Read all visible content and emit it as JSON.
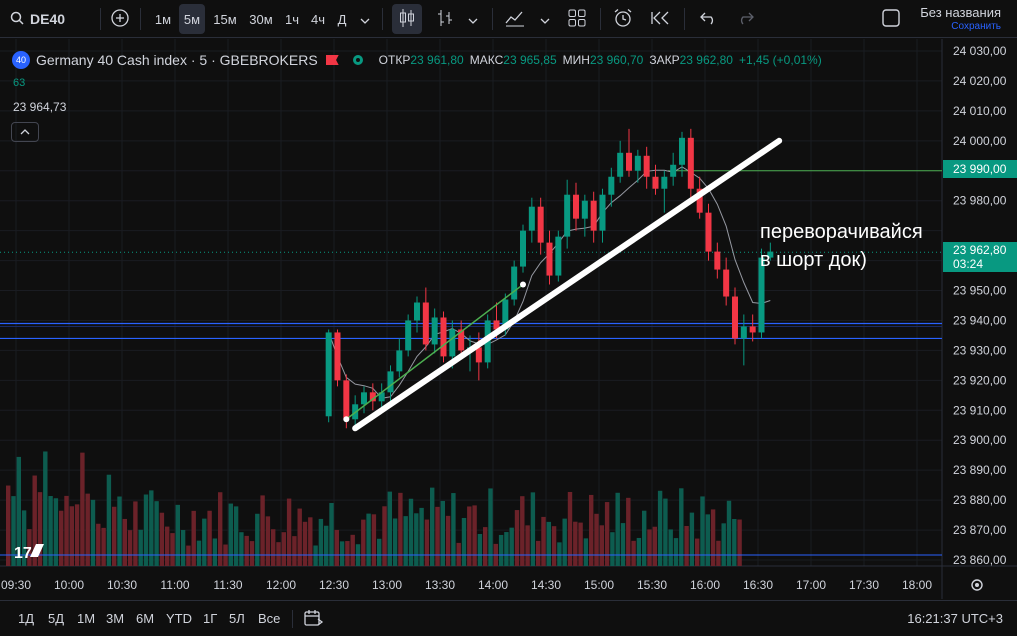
{
  "toolbar": {
    "symbol": "DE40",
    "intervals": [
      "1м",
      "5м",
      "15м",
      "30м",
      "1ч",
      "4ч",
      "Д"
    ],
    "active_interval": "5м",
    "layout_title": "Без названия",
    "layout_status": "Сохранить"
  },
  "legend": {
    "badge": "40",
    "title": "Germany 40 Cash index · 5 · GBEBROKERS",
    "open_label": "ОТКР",
    "open": "23 961,80",
    "high_label": "МАКС",
    "high": "23 965,85",
    "low_label": "МИН",
    "low": "23 960,70",
    "close_label": "ЗАКР",
    "close": "23 962,80",
    "change": "+1,45 (+0,01%)",
    "indicator_value": "63",
    "ma_value": "23 964,73"
  },
  "annotation": {
    "line1": "переворачивайся",
    "line2": "в шорт док)"
  },
  "price_axis": {
    "ticks": [
      "24 030,00",
      "24 020,00",
      "24 010,00",
      "24 000,00",
      "23 980,00",
      "23 950,00",
      "23 940,00",
      "23 930,00",
      "23 920,00",
      "23 910,00",
      "23 900,00",
      "23 890,00",
      "23 880,00",
      "23 870,00",
      "23 860,00"
    ],
    "level_label": "23 990,00",
    "current_price": "23 962,80",
    "countdown": "03:24"
  },
  "time_axis": {
    "ticks": [
      "09:30",
      "10:00",
      "10:30",
      "11:00",
      "11:30",
      "12:00",
      "12:30",
      "13:00",
      "13:30",
      "14:00",
      "14:30",
      "15:00",
      "15:30",
      "16:00",
      "16:30",
      "17:00",
      "17:30",
      "18:00"
    ]
  },
  "bottom": {
    "ranges": [
      "1Д",
      "5Д",
      "1М",
      "3М",
      "6М",
      "YTD",
      "1Г",
      "5Л",
      "Все"
    ],
    "clock": "16:21:37 UTC+3"
  },
  "colors": {
    "up": "#089981",
    "down": "#f23645",
    "level": "#4caf50",
    "zone": "#2962ff"
  },
  "chart_data": {
    "type": "candlestick",
    "x_axis": "time",
    "y_axis_range": [
      23858,
      24032
    ],
    "candles": [
      {
        "t": "12:10",
        "o": 23908,
        "h": 23937,
        "l": 23906,
        "c": 23936
      },
      {
        "t": "12:15",
        "o": 23936,
        "h": 23937,
        "l": 23918,
        "c": 23920
      },
      {
        "t": "12:20",
        "o": 23920,
        "h": 23922,
        "l": 23904,
        "c": 23907
      },
      {
        "t": "12:25",
        "o": 23907,
        "h": 23915,
        "l": 23905,
        "c": 23912
      },
      {
        "t": "12:30",
        "o": 23912,
        "h": 23918,
        "l": 23909,
        "c": 23916
      },
      {
        "t": "12:35",
        "o": 23916,
        "h": 23919,
        "l": 23910,
        "c": 23913
      },
      {
        "t": "12:40",
        "o": 23913,
        "h": 23919,
        "l": 23910,
        "c": 23916
      },
      {
        "t": "12:45",
        "o": 23916,
        "h": 23925,
        "l": 23913,
        "c": 23923
      },
      {
        "t": "12:50",
        "o": 23923,
        "h": 23934,
        "l": 23921,
        "c": 23930
      },
      {
        "t": "12:55",
        "o": 23930,
        "h": 23942,
        "l": 23928,
        "c": 23940
      },
      {
        "t": "13:00",
        "o": 23940,
        "h": 23948,
        "l": 23936,
        "c": 23946
      },
      {
        "t": "13:05",
        "o": 23946,
        "h": 23951,
        "l": 23930,
        "c": 23932
      },
      {
        "t": "13:10",
        "o": 23932,
        "h": 23944,
        "l": 23929,
        "c": 23941
      },
      {
        "t": "13:15",
        "o": 23941,
        "h": 23943,
        "l": 23926,
        "c": 23928
      },
      {
        "t": "13:20",
        "o": 23928,
        "h": 23940,
        "l": 23924,
        "c": 23937
      },
      {
        "t": "13:25",
        "o": 23937,
        "h": 23940,
        "l": 23927,
        "c": 23930
      },
      {
        "t": "13:30",
        "o": 23930,
        "h": 23935,
        "l": 23923,
        "c": 23931
      },
      {
        "t": "13:35",
        "o": 23931,
        "h": 23936,
        "l": 23920,
        "c": 23926
      },
      {
        "t": "13:40",
        "o": 23926,
        "h": 23942,
        "l": 23924,
        "c": 23940
      },
      {
        "t": "13:45",
        "o": 23940,
        "h": 23946,
        "l": 23934,
        "c": 23937
      },
      {
        "t": "13:50",
        "o": 23937,
        "h": 23949,
        "l": 23935,
        "c": 23947
      },
      {
        "t": "13:55",
        "o": 23947,
        "h": 23960,
        "l": 23945,
        "c": 23958
      },
      {
        "t": "14:00",
        "o": 23958,
        "h": 23972,
        "l": 23956,
        "c": 23970
      },
      {
        "t": "14:05",
        "o": 23970,
        "h": 23981,
        "l": 23966,
        "c": 23978
      },
      {
        "t": "14:10",
        "o": 23978,
        "h": 23981,
        "l": 23962,
        "c": 23966
      },
      {
        "t": "14:15",
        "o": 23966,
        "h": 23970,
        "l": 23952,
        "c": 23955
      },
      {
        "t": "14:20",
        "o": 23955,
        "h": 23970,
        "l": 23953,
        "c": 23968
      },
      {
        "t": "14:25",
        "o": 23968,
        "h": 23987,
        "l": 23964,
        "c": 23982
      },
      {
        "t": "14:30",
        "o": 23982,
        "h": 23986,
        "l": 23970,
        "c": 23974
      },
      {
        "t": "14:35",
        "o": 23974,
        "h": 23982,
        "l": 23968,
        "c": 23980
      },
      {
        "t": "14:40",
        "o": 23980,
        "h": 23983,
        "l": 23966,
        "c": 23970
      },
      {
        "t": "14:45",
        "o": 23970,
        "h": 23984,
        "l": 23966,
        "c": 23982
      },
      {
        "t": "14:50",
        "o": 23982,
        "h": 23991,
        "l": 23978,
        "c": 23988
      },
      {
        "t": "14:55",
        "o": 23988,
        "h": 24000,
        "l": 23986,
        "c": 23996
      },
      {
        "t": "15:00",
        "o": 23996,
        "h": 24004,
        "l": 23988,
        "c": 23990
      },
      {
        "t": "15:05",
        "o": 23990,
        "h": 23997,
        "l": 23986,
        "c": 23995
      },
      {
        "t": "15:10",
        "o": 23995,
        "h": 23998,
        "l": 23984,
        "c": 23988
      },
      {
        "t": "15:15",
        "o": 23988,
        "h": 23992,
        "l": 23982,
        "c": 23984
      },
      {
        "t": "15:20",
        "o": 23984,
        "h": 23990,
        "l": 23976,
        "c": 23988
      },
      {
        "t": "15:25",
        "o": 23988,
        "h": 23996,
        "l": 23985,
        "c": 23992
      },
      {
        "t": "15:30",
        "o": 23992,
        "h": 24003,
        "l": 23988,
        "c": 24001
      },
      {
        "t": "15:35",
        "o": 24001,
        "h": 24004,
        "l": 23980,
        "c": 23984
      },
      {
        "t": "15:40",
        "o": 23984,
        "h": 23988,
        "l": 23974,
        "c": 23976
      },
      {
        "t": "15:45",
        "o": 23976,
        "h": 23979,
        "l": 23960,
        "c": 23963
      },
      {
        "t": "15:50",
        "o": 23963,
        "h": 23966,
        "l": 23954,
        "c": 23957
      },
      {
        "t": "15:55",
        "o": 23957,
        "h": 23961,
        "l": 23945,
        "c": 23948
      },
      {
        "t": "16:00",
        "o": 23948,
        "h": 23951,
        "l": 23932,
        "c": 23934
      },
      {
        "t": "16:05",
        "o": 23934,
        "h": 23942,
        "l": 23925,
        "c": 23938
      },
      {
        "t": "16:10",
        "o": 23938,
        "h": 23942,
        "l": 23933,
        "c": 23936
      },
      {
        "t": "16:15",
        "o": 23936,
        "h": 23964,
        "l": 23934,
        "c": 23961
      },
      {
        "t": "16:20",
        "o": 23961,
        "h": 23966,
        "l": 23960,
        "c": 23963
      }
    ],
    "levels": [
      23990,
      23962.8
    ],
    "zone": [
      23934,
      23939
    ]
  }
}
